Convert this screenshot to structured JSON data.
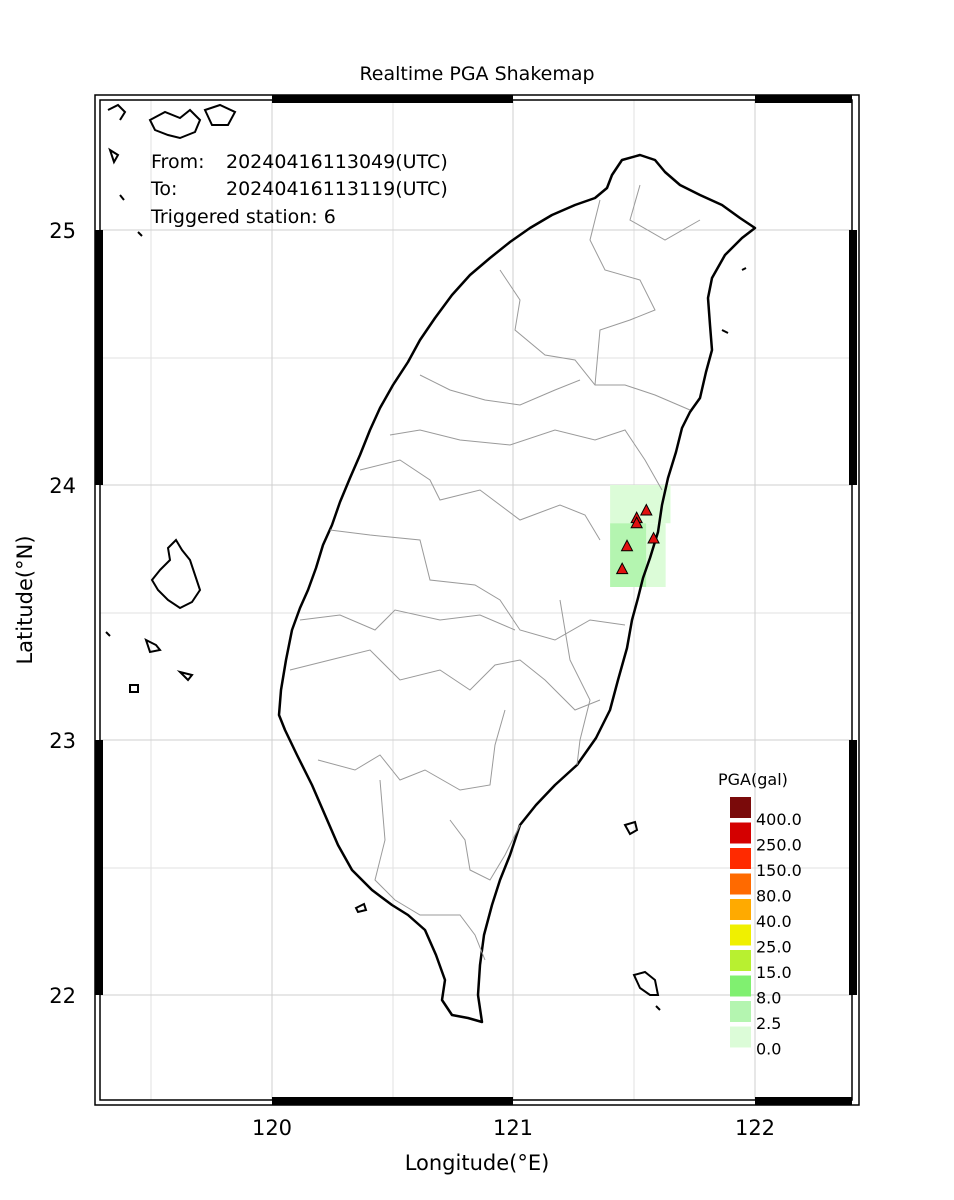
{
  "title": "Realtime PGA Shakemap",
  "xlabel": "Longitude(°E)",
  "ylabel": "Latitude(°N)",
  "x_ticks": [
    "120",
    "121",
    "122"
  ],
  "y_ticks": [
    "25",
    "24",
    "23",
    "22"
  ],
  "info": {
    "from_label": "From:",
    "from_value": "20240416113049(UTC)",
    "to_label": "To:",
    "to_value": "20240416113119(UTC)",
    "triggered": "Triggered station: 6"
  },
  "legend": {
    "title": "PGA(gal)",
    "levels": [
      {
        "label": "400.0",
        "color": "#7a0a0a"
      },
      {
        "label": "250.0",
        "color": "#d40000"
      },
      {
        "label": "150.0",
        "color": "#ff2a00"
      },
      {
        "label": "80.0",
        "color": "#ff6a00"
      },
      {
        "label": "40.0",
        "color": "#ffaa00"
      },
      {
        "label": "25.0",
        "color": "#f0f000"
      },
      {
        "label": "15.0",
        "color": "#b8f030"
      },
      {
        "label": "8.0",
        "color": "#80f070"
      },
      {
        "label": "2.5",
        "color": "#b4f5b0"
      },
      {
        "label": "0.0",
        "color": "#dcfcd8"
      }
    ]
  },
  "chart_data": {
    "type": "scatter",
    "xlim": [
      119.23,
      122.4
    ],
    "ylim": [
      21.58,
      25.52
    ],
    "stations": [
      {
        "lon": 121.55,
        "lat": 23.9
      },
      {
        "lon": 121.51,
        "lat": 23.87
      },
      {
        "lon": 121.51,
        "lat": 23.85
      },
      {
        "lon": 121.58,
        "lat": 23.79
      },
      {
        "lon": 121.47,
        "lat": 23.76
      },
      {
        "lon": 121.45,
        "lat": 23.67
      }
    ],
    "pga_cells": [
      {
        "lon": [
          121.4,
          121.65
        ],
        "lat": [
          23.85,
          24.0
        ],
        "level": "0.0",
        "color": "#dcfcd8"
      },
      {
        "lon": [
          121.4,
          121.55
        ],
        "lat": [
          23.6,
          23.85
        ],
        "level": "2.5",
        "color": "#b4f5b0"
      },
      {
        "lon": [
          121.55,
          121.63
        ],
        "lat": [
          23.6,
          23.85
        ],
        "level": "0.0",
        "color": "#dcfcd8"
      }
    ]
  }
}
